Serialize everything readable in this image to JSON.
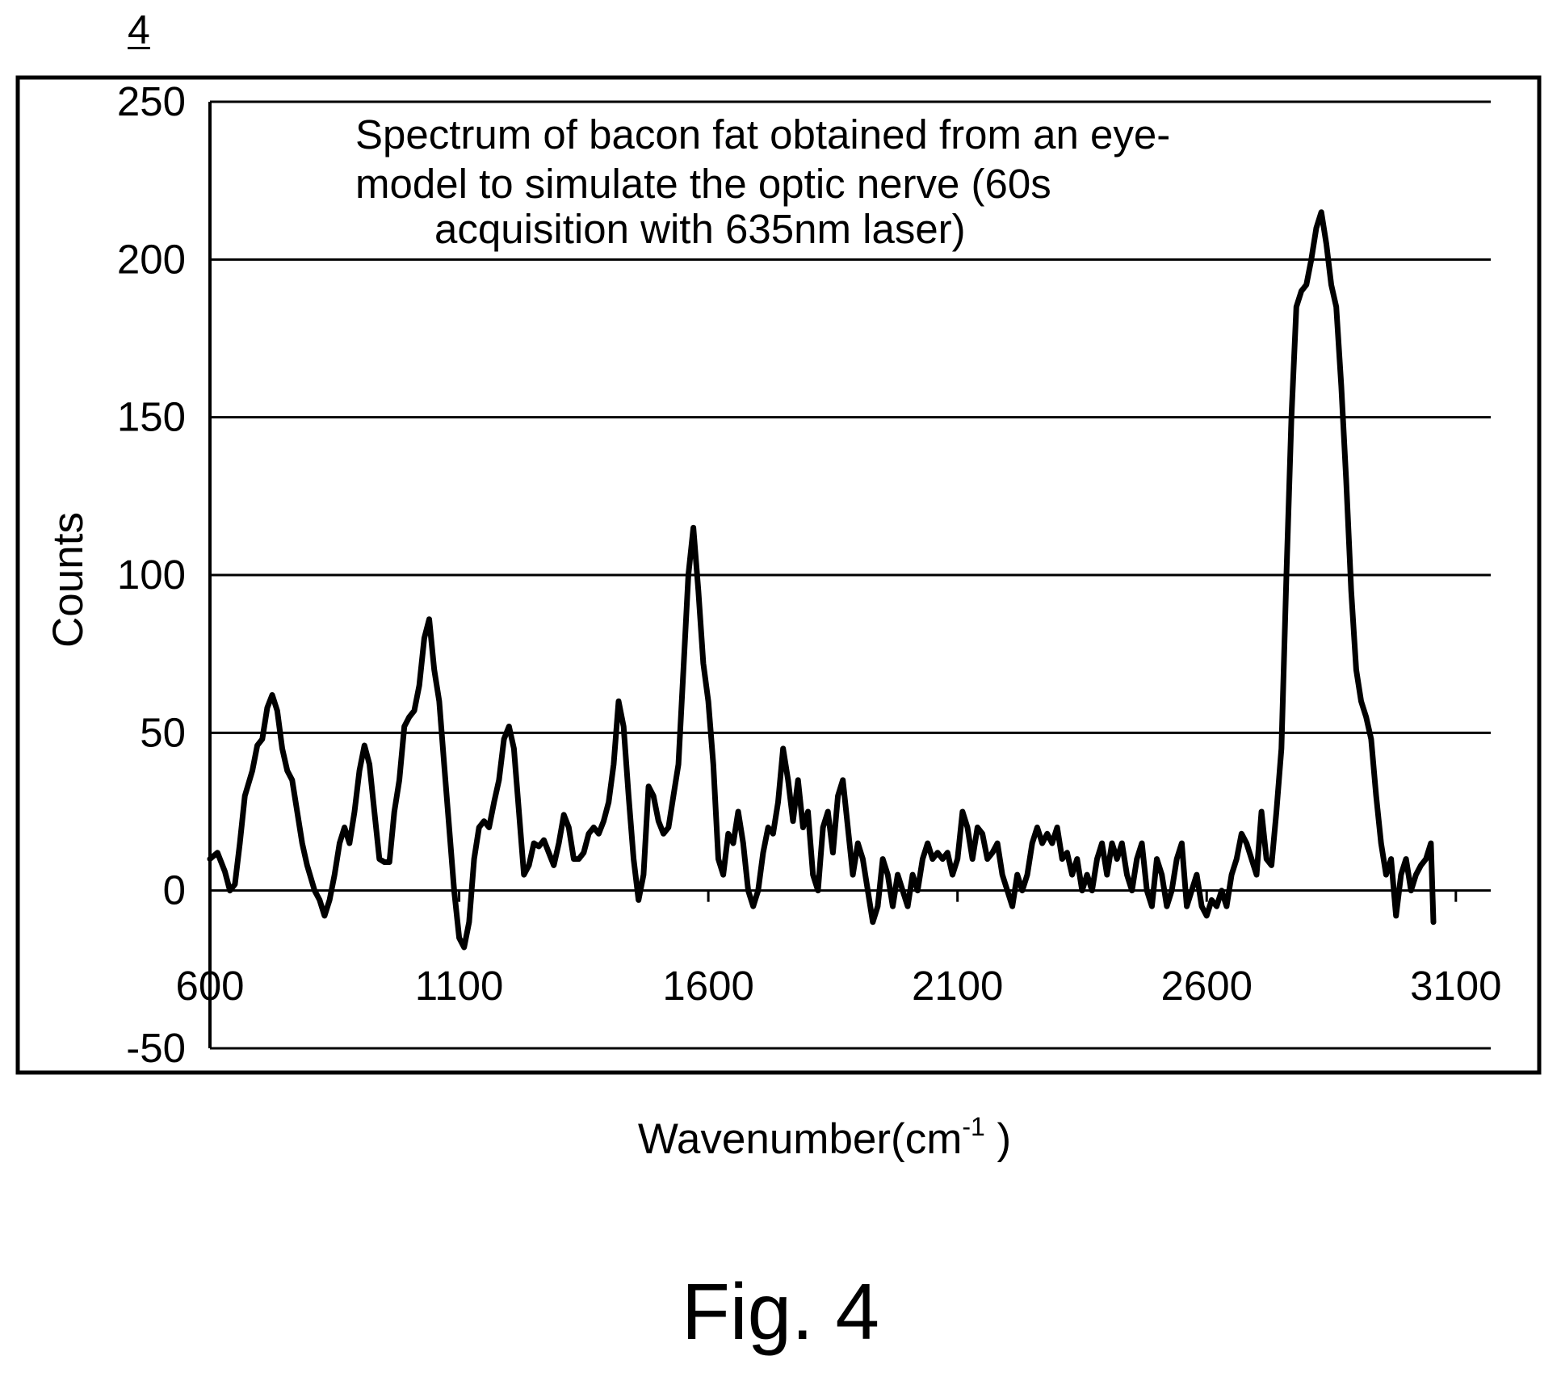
{
  "figure_ref": "4",
  "caption": "Fig. 4",
  "chart_data": {
    "type": "line",
    "annotation": [
      "Spectrum of bacon fat obtained from an eye-",
      "model to simulate the optic nerve (60s",
      "acquisition with 635nm laser)"
    ],
    "xlabel_main": "Wavenumber(cm",
    "xlabel_sup": "-1",
    "xlabel_close": " )",
    "ylabel": "Counts",
    "xlim": [
      600,
      3170
    ],
    "ylim": [
      -50,
      250
    ],
    "x_ticks": [
      600,
      1100,
      1600,
      2100,
      2600,
      3100
    ],
    "x_tick_labels": [
      "600",
      "1100",
      "1600",
      "2100",
      "2600",
      "3100"
    ],
    "y_ticks": [
      -50,
      0,
      50,
      100,
      150,
      200,
      250
    ],
    "y_tick_labels": [
      "-50",
      "0",
      "50",
      "100",
      "150",
      "200",
      "250"
    ],
    "grid": "horizontal",
    "series": [
      {
        "color": "#000000",
        "points": [
          [
            600,
            10
          ],
          [
            615,
            12
          ],
          [
            630,
            6
          ],
          [
            640,
            0
          ],
          [
            650,
            2
          ],
          [
            660,
            15
          ],
          [
            670,
            30
          ],
          [
            685,
            38
          ],
          [
            695,
            46
          ],
          [
            705,
            48
          ],
          [
            715,
            58
          ],
          [
            725,
            62
          ],
          [
            735,
            57
          ],
          [
            745,
            45
          ],
          [
            755,
            38
          ],
          [
            765,
            35
          ],
          [
            775,
            25
          ],
          [
            785,
            15
          ],
          [
            795,
            8
          ],
          [
            810,
            0
          ],
          [
            820,
            -3
          ],
          [
            830,
            -8
          ],
          [
            840,
            -3
          ],
          [
            850,
            5
          ],
          [
            860,
            15
          ],
          [
            870,
            20
          ],
          [
            880,
            15
          ],
          [
            890,
            25
          ],
          [
            900,
            38
          ],
          [
            910,
            46
          ],
          [
            920,
            40
          ],
          [
            930,
            25
          ],
          [
            940,
            10
          ],
          [
            950,
            9
          ],
          [
            960,
            9
          ],
          [
            970,
            25
          ],
          [
            980,
            35
          ],
          [
            990,
            52
          ],
          [
            1000,
            55
          ],
          [
            1010,
            57
          ],
          [
            1020,
            65
          ],
          [
            1030,
            80
          ],
          [
            1040,
            86
          ],
          [
            1050,
            70
          ],
          [
            1060,
            60
          ],
          [
            1070,
            40
          ],
          [
            1080,
            20
          ],
          [
            1090,
            0
          ],
          [
            1100,
            -15
          ],
          [
            1110,
            -18
          ],
          [
            1120,
            -10
          ],
          [
            1130,
            10
          ],
          [
            1140,
            20
          ],
          [
            1150,
            22
          ],
          [
            1160,
            20
          ],
          [
            1170,
            28
          ],
          [
            1180,
            35
          ],
          [
            1190,
            48
          ],
          [
            1200,
            52
          ],
          [
            1210,
            45
          ],
          [
            1220,
            25
          ],
          [
            1230,
            5
          ],
          [
            1240,
            8
          ],
          [
            1250,
            15
          ],
          [
            1260,
            14
          ],
          [
            1270,
            16
          ],
          [
            1280,
            12
          ],
          [
            1290,
            8
          ],
          [
            1300,
            15
          ],
          [
            1310,
            24
          ],
          [
            1320,
            20
          ],
          [
            1330,
            10
          ],
          [
            1340,
            10
          ],
          [
            1350,
            12
          ],
          [
            1360,
            18
          ],
          [
            1370,
            20
          ],
          [
            1380,
            18
          ],
          [
            1390,
            22
          ],
          [
            1400,
            28
          ],
          [
            1410,
            40
          ],
          [
            1420,
            60
          ],
          [
            1430,
            52
          ],
          [
            1440,
            30
          ],
          [
            1450,
            10
          ],
          [
            1460,
            -3
          ],
          [
            1470,
            5
          ],
          [
            1480,
            33
          ],
          [
            1490,
            30
          ],
          [
            1500,
            22
          ],
          [
            1510,
            18
          ],
          [
            1520,
            20
          ],
          [
            1530,
            30
          ],
          [
            1540,
            40
          ],
          [
            1550,
            70
          ],
          [
            1560,
            100
          ],
          [
            1570,
            115
          ],
          [
            1580,
            95
          ],
          [
            1590,
            72
          ],
          [
            1600,
            60
          ],
          [
            1610,
            40
          ],
          [
            1620,
            10
          ],
          [
            1630,
            5
          ],
          [
            1640,
            18
          ],
          [
            1650,
            15
          ],
          [
            1660,
            25
          ],
          [
            1670,
            15
          ],
          [
            1680,
            0
          ],
          [
            1690,
            -5
          ],
          [
            1700,
            0
          ],
          [
            1710,
            12
          ],
          [
            1720,
            20
          ],
          [
            1730,
            18
          ],
          [
            1740,
            28
          ],
          [
            1750,
            45
          ],
          [
            1760,
            35
          ],
          [
            1770,
            22
          ],
          [
            1780,
            35
          ],
          [
            1790,
            20
          ],
          [
            1800,
            25
          ],
          [
            1810,
            5
          ],
          [
            1820,
            0
          ],
          [
            1830,
            20
          ],
          [
            1840,
            25
          ],
          [
            1850,
            12
          ],
          [
            1860,
            30
          ],
          [
            1870,
            35
          ],
          [
            1880,
            20
          ],
          [
            1890,
            5
          ],
          [
            1900,
            15
          ],
          [
            1910,
            10
          ],
          [
            1920,
            0
          ],
          [
            1930,
            -10
          ],
          [
            1940,
            -5
          ],
          [
            1950,
            10
          ],
          [
            1960,
            5
          ],
          [
            1970,
            -5
          ],
          [
            1980,
            5
          ],
          [
            1990,
            0
          ],
          [
            2000,
            -5
          ],
          [
            2010,
            5
          ],
          [
            2020,
            0
          ],
          [
            2030,
            10
          ],
          [
            2040,
            15
          ],
          [
            2050,
            10
          ],
          [
            2060,
            12
          ],
          [
            2070,
            10
          ],
          [
            2080,
            12
          ],
          [
            2090,
            5
          ],
          [
            2100,
            10
          ],
          [
            2110,
            25
          ],
          [
            2120,
            20
          ],
          [
            2130,
            10
          ],
          [
            2140,
            20
          ],
          [
            2150,
            18
          ],
          [
            2160,
            10
          ],
          [
            2170,
            12
          ],
          [
            2180,
            15
          ],
          [
            2190,
            5
          ],
          [
            2200,
            0
          ],
          [
            2210,
            -5
          ],
          [
            2220,
            5
          ],
          [
            2230,
            0
          ],
          [
            2240,
            5
          ],
          [
            2250,
            15
          ],
          [
            2260,
            20
          ],
          [
            2270,
            15
          ],
          [
            2280,
            18
          ],
          [
            2290,
            15
          ],
          [
            2300,
            20
          ],
          [
            2310,
            10
          ],
          [
            2320,
            12
          ],
          [
            2330,
            5
          ],
          [
            2340,
            10
          ],
          [
            2350,
            0
          ],
          [
            2360,
            5
          ],
          [
            2370,
            0
          ],
          [
            2380,
            10
          ],
          [
            2390,
            15
          ],
          [
            2400,
            5
          ],
          [
            2410,
            15
          ],
          [
            2420,
            10
          ],
          [
            2430,
            15
          ],
          [
            2440,
            5
          ],
          [
            2450,
            0
          ],
          [
            2460,
            10
          ],
          [
            2470,
            15
          ],
          [
            2480,
            0
          ],
          [
            2490,
            -5
          ],
          [
            2500,
            10
          ],
          [
            2510,
            5
          ],
          [
            2520,
            -5
          ],
          [
            2530,
            0
          ],
          [
            2540,
            10
          ],
          [
            2550,
            15
          ],
          [
            2560,
            -5
          ],
          [
            2570,
            0
          ],
          [
            2580,
            5
          ],
          [
            2590,
            -5
          ],
          [
            2600,
            -8
          ],
          [
            2610,
            -3
          ],
          [
            2620,
            -5
          ],
          [
            2630,
            0
          ],
          [
            2640,
            -5
          ],
          [
            2650,
            5
          ],
          [
            2660,
            10
          ],
          [
            2670,
            18
          ],
          [
            2680,
            15
          ],
          [
            2690,
            10
          ],
          [
            2700,
            5
          ],
          [
            2710,
            25
          ],
          [
            2720,
            10
          ],
          [
            2730,
            8
          ],
          [
            2740,
            25
          ],
          [
            2750,
            45
          ],
          [
            2760,
            100
          ],
          [
            2770,
            150
          ],
          [
            2780,
            185
          ],
          [
            2790,
            190
          ],
          [
            2800,
            192
          ],
          [
            2810,
            200
          ],
          [
            2820,
            210
          ],
          [
            2830,
            215
          ],
          [
            2840,
            205
          ],
          [
            2850,
            192
          ],
          [
            2860,
            185
          ],
          [
            2870,
            160
          ],
          [
            2880,
            130
          ],
          [
            2890,
            95
          ],
          [
            2900,
            70
          ],
          [
            2910,
            60
          ],
          [
            2920,
            55
          ],
          [
            2930,
            48
          ],
          [
            2940,
            30
          ],
          [
            2950,
            15
          ],
          [
            2960,
            5
          ],
          [
            2970,
            10
          ],
          [
            2980,
            -8
          ],
          [
            2990,
            5
          ],
          [
            3000,
            10
          ],
          [
            3010,
            0
          ],
          [
            3020,
            5
          ],
          [
            3030,
            8
          ],
          [
            3040,
            10
          ],
          [
            3050,
            15
          ],
          [
            3055,
            -10
          ]
        ]
      }
    ]
  }
}
